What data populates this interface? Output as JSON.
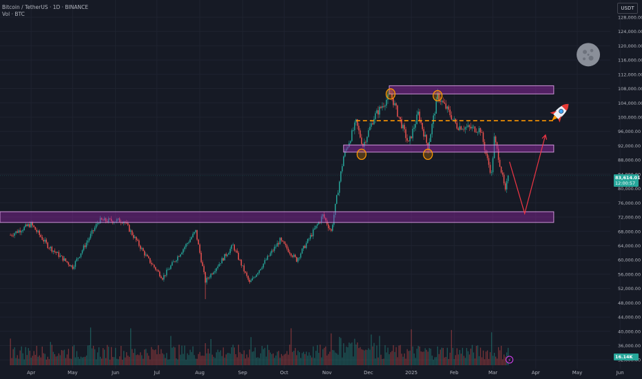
{
  "header": {
    "title": "Bitcoin / TetherUS · 1D · BINANCE",
    "volume_label": "Vol · BTC",
    "currency": "USDT"
  },
  "price_tags": {
    "last_price": "83,614.01",
    "countdown": "12:00:57",
    "volume_value": "16.14K"
  },
  "colors": {
    "background": "#161a25",
    "up": "#26a69a",
    "down": "#ef5350",
    "zone": "#9c27b0",
    "marker": "#ff9800",
    "projection": "#f23645"
  },
  "chart_data": {
    "type": "candlestick",
    "exchange": "BINANCE",
    "symbol": "Bitcoin / TetherUS",
    "timeframe": "1D",
    "y_axis_ticks": [
      32000,
      36000,
      40000,
      44000,
      48000,
      52000,
      56000,
      60000,
      64000,
      68000,
      72000,
      76000,
      80000,
      84000,
      88000,
      92000,
      96000,
      100000,
      104000,
      108000,
      112000,
      116000,
      120000,
      124000,
      128000
    ],
    "y_axis_labels": [
      "32,000.00",
      "36,000.00",
      "40,000.00",
      "44,000.00",
      "48,000.00",
      "52,000.00",
      "56,000.00",
      "60,000.00",
      "64,000.00",
      "68,000.00",
      "72,000.00",
      "76,000.00",
      "80,000.00",
      "84,000.00",
      "88,000.00",
      "92,000.00",
      "96,000.00",
      "100,000.00",
      "104,000.00",
      "108,000.00",
      "112,000.00",
      "116,000.00",
      "120,000.00",
      "124,000.00",
      "128,000.00"
    ],
    "ylim": [
      30500,
      130500
    ],
    "x_axis_labels": [
      "Apr",
      "May",
      "Jun",
      "Jul",
      "Aug",
      "Sep",
      "Oct",
      "Nov",
      "Dec",
      "2025",
      "Feb",
      "Mar",
      "Apr",
      "May",
      "Jun"
    ],
    "price_anchors": [
      {
        "date": "2024-03-17",
        "price": 67000
      },
      {
        "date": "2024-04-01",
        "price": 70000
      },
      {
        "date": "2024-04-13",
        "price": 64000
      },
      {
        "date": "2024-05-01",
        "price": 58000
      },
      {
        "date": "2024-05-20",
        "price": 71000
      },
      {
        "date": "2024-06-07",
        "price": 71000
      },
      {
        "date": "2024-06-24",
        "price": 60500
      },
      {
        "date": "2024-07-05",
        "price": 55000
      },
      {
        "date": "2024-07-29",
        "price": 68000
      },
      {
        "date": "2024-08-05",
        "price": 54000
      },
      {
        "date": "2024-08-25",
        "price": 64000
      },
      {
        "date": "2024-09-06",
        "price": 53500
      },
      {
        "date": "2024-09-28",
        "price": 65500
      },
      {
        "date": "2024-10-10",
        "price": 60000
      },
      {
        "date": "2024-10-29",
        "price": 72500
      },
      {
        "date": "2024-11-04",
        "price": 68000
      },
      {
        "date": "2024-11-13",
        "price": 89000
      },
      {
        "date": "2024-11-22",
        "price": 98500
      },
      {
        "date": "2024-11-27",
        "price": 92000
      },
      {
        "date": "2024-12-05",
        "price": 100000
      },
      {
        "date": "2024-12-17",
        "price": 106500
      },
      {
        "date": "2024-12-30",
        "price": 92500
      },
      {
        "date": "2025-01-06",
        "price": 101000
      },
      {
        "date": "2025-01-13",
        "price": 91500
      },
      {
        "date": "2025-01-20",
        "price": 106000
      },
      {
        "date": "2025-01-28",
        "price": 101500
      },
      {
        "date": "2025-02-03",
        "price": 97500
      },
      {
        "date": "2025-02-20",
        "price": 96500
      },
      {
        "date": "2025-02-25",
        "price": 88000
      },
      {
        "date": "2025-02-28",
        "price": 84000
      },
      {
        "date": "2025-03-02",
        "price": 94000
      },
      {
        "date": "2025-03-05",
        "price": 89000
      },
      {
        "date": "2025-03-10",
        "price": 79000
      },
      {
        "date": "2025-03-12",
        "price": 83614
      }
    ],
    "annotations": {
      "resistance_zone": [
        106500,
        108800
      ],
      "support_zone_upper": [
        90200,
        92200
      ],
      "support_zone_lower": [
        70500,
        73500
      ],
      "dashed_level": 99000,
      "projection_path": [
        {
          "date": "2025-03-13",
          "price": 87500
        },
        {
          "date": "2025-03-24",
          "price": 73000
        },
        {
          "date": "2025-04-08",
          "price": 95000
        }
      ],
      "last_price": 83614.01
    }
  }
}
